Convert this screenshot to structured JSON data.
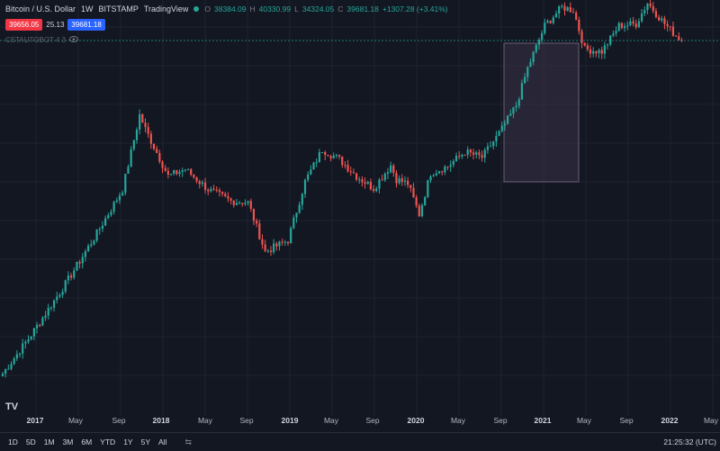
{
  "header": {
    "title": "Bitcoin / U.S. Dollar",
    "interval": "1W",
    "exchange": "BITSTAMP",
    "source": "TradingView",
    "ohlc": [
      {
        "k": "O",
        "v": "38384.09"
      },
      {
        "k": "H",
        "v": "40330.99"
      },
      {
        "k": "L",
        "v": "34324.05"
      },
      {
        "k": "C",
        "v": "39681.18"
      }
    ],
    "change": "+1307.28 (+3.41%)",
    "sell_price": "39656.05",
    "spread": "25.13",
    "buy_price": "39681.18",
    "indicator": "CSTAUTOBOT 4 3"
  },
  "colors": {
    "up": "#26a69a",
    "down": "#ef5350",
    "background": "#131722",
    "grid": "#1f2330",
    "highlight": "#3a3347"
  },
  "chart_data": {
    "type": "candlestick",
    "x_axis": [
      "2017",
      "May",
      "Sep",
      "2018",
      "May",
      "Sep",
      "2019",
      "May",
      "Sep",
      "2020",
      "May",
      "Sep",
      "2021",
      "May",
      "Sep",
      "2022",
      "May"
    ],
    "anchors": [
      {
        "i": 0,
        "p": 900
      },
      {
        "i": 10,
        "p": 1400
      },
      {
        "i": 22,
        "p": 2500
      },
      {
        "i": 32,
        "p": 4200
      },
      {
        "i": 42,
        "p": 7300
      },
      {
        "i": 48,
        "p": 17000
      },
      {
        "i": 50,
        "p": 14500
      },
      {
        "i": 58,
        "p": 8500
      },
      {
        "i": 64,
        "p": 9200
      },
      {
        "i": 72,
        "p": 7300
      },
      {
        "i": 80,
        "p": 6400
      },
      {
        "i": 86,
        "p": 6300
      },
      {
        "i": 92,
        "p": 3600
      },
      {
        "i": 100,
        "p": 4100
      },
      {
        "i": 106,
        "p": 8000
      },
      {
        "i": 112,
        "p": 11500
      },
      {
        "i": 118,
        "p": 10300
      },
      {
        "i": 124,
        "p": 8500
      },
      {
        "i": 130,
        "p": 7400
      },
      {
        "i": 136,
        "p": 9600
      },
      {
        "i": 138,
        "p": 8200
      },
      {
        "i": 142,
        "p": 7800
      },
      {
        "i": 146,
        "p": 5500
      },
      {
        "i": 150,
        "p": 8800
      },
      {
        "i": 156,
        "p": 9500
      },
      {
        "i": 162,
        "p": 11200
      },
      {
        "i": 168,
        "p": 10500
      },
      {
        "i": 174,
        "p": 13800
      },
      {
        "i": 180,
        "p": 19000
      },
      {
        "i": 184,
        "p": 29000
      },
      {
        "i": 190,
        "p": 47000
      },
      {
        "i": 196,
        "p": 58000
      },
      {
        "i": 200,
        "p": 56000
      },
      {
        "i": 204,
        "p": 36000
      },
      {
        "i": 210,
        "p": 35000
      },
      {
        "i": 216,
        "p": 47000
      },
      {
        "i": 222,
        "p": 48000
      },
      {
        "i": 226,
        "p": 61000
      },
      {
        "i": 232,
        "p": 48000
      },
      {
        "i": 236,
        "p": 42000
      },
      {
        "i": 238,
        "p": 39681
      }
    ],
    "last_price": 39681.18,
    "highlight_range": [
      "2020-10",
      "2021-04"
    ]
  },
  "bottom": {
    "ranges": [
      "1D",
      "5D",
      "1M",
      "3M",
      "6M",
      "YTD",
      "1Y",
      "5Y",
      "All"
    ],
    "clock": "21:25:32 (UTC)"
  }
}
